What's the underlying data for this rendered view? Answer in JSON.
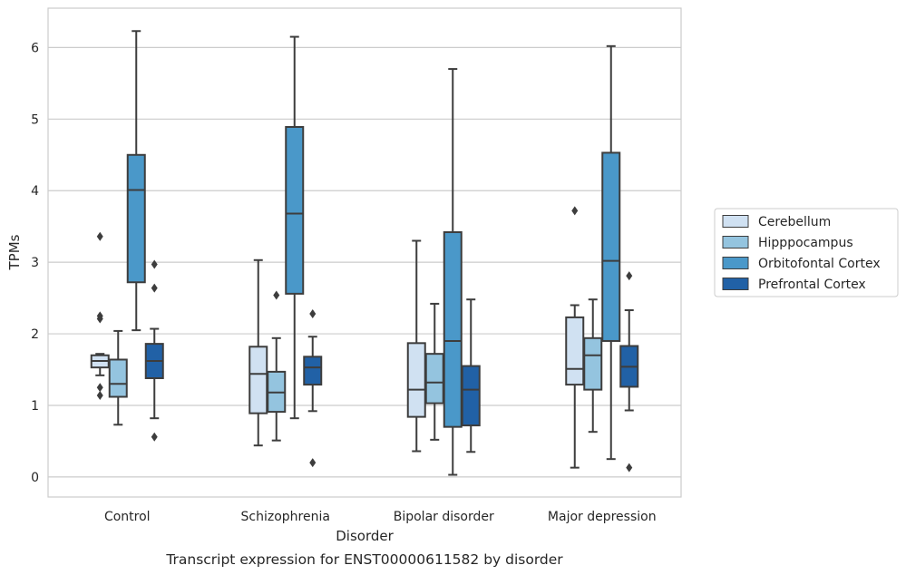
{
  "chart_data": {
    "type": "box",
    "caption": "Transcript expression for ENST00000611582 by disorder",
    "xlabel": "Disorder",
    "ylabel": "TPMs",
    "ylim": [
      -0.28,
      6.55
    ],
    "yticks": [
      0,
      1,
      2,
      3,
      4,
      5,
      6
    ],
    "ytick_labels": [
      "0",
      "1",
      "2",
      "3",
      "4",
      "5",
      "6"
    ],
    "grid": true,
    "legend_position": "right",
    "categories": [
      "Control",
      "Schizophrenia",
      "Bipolar disorder",
      "Major depression"
    ],
    "series": [
      {
        "name": "Cerebellum",
        "color": "#d0e1f2",
        "boxes": [
          {
            "whislo": 1.42,
            "q1": 1.53,
            "med": 1.62,
            "q3": 1.7,
            "whishi": 1.72,
            "fliers": [
              3.36,
              2.25,
              2.21,
              1.25,
              1.14
            ]
          },
          {
            "whislo": 0.44,
            "q1": 0.89,
            "med": 1.44,
            "q3": 1.82,
            "whishi": 3.03,
            "fliers": []
          },
          {
            "whislo": 0.36,
            "q1": 0.84,
            "med": 1.22,
            "q3": 1.87,
            "whishi": 3.3,
            "fliers": []
          },
          {
            "whislo": 0.13,
            "q1": 1.29,
            "med": 1.51,
            "q3": 2.23,
            "whishi": 2.4,
            "fliers": [
              3.72
            ]
          }
        ]
      },
      {
        "name": "Hipppocampus",
        "color": "#94c4df",
        "boxes": [
          {
            "whislo": 0.73,
            "q1": 1.12,
            "med": 1.3,
            "q3": 1.64,
            "whishi": 2.04,
            "fliers": []
          },
          {
            "whislo": 0.51,
            "q1": 0.91,
            "med": 1.18,
            "q3": 1.47,
            "whishi": 1.94,
            "fliers": [
              2.54
            ]
          },
          {
            "whislo": 0.52,
            "q1": 1.03,
            "med": 1.32,
            "q3": 1.72,
            "whishi": 2.42,
            "fliers": []
          },
          {
            "whislo": 0.63,
            "q1": 1.22,
            "med": 1.7,
            "q3": 1.94,
            "whishi": 2.48,
            "fliers": []
          }
        ]
      },
      {
        "name": "Orbitofontal Cortex",
        "color": "#4a98c9",
        "boxes": [
          {
            "whislo": 2.05,
            "q1": 2.72,
            "med": 4.01,
            "q3": 4.5,
            "whishi": 6.23,
            "fliers": []
          },
          {
            "whislo": 0.82,
            "q1": 2.56,
            "med": 3.68,
            "q3": 4.89,
            "whishi": 6.15,
            "fliers": []
          },
          {
            "whislo": 0.03,
            "q1": 0.7,
            "med": 1.9,
            "q3": 3.42,
            "whishi": 5.7,
            "fliers": []
          },
          {
            "whislo": 0.25,
            "q1": 1.9,
            "med": 3.02,
            "q3": 4.53,
            "whishi": 6.02,
            "fliers": []
          }
        ]
      },
      {
        "name": "Prefrontal Cortex",
        "color": "#2161a6",
        "boxes": [
          {
            "whislo": 0.82,
            "q1": 1.38,
            "med": 1.62,
            "q3": 1.86,
            "whishi": 2.07,
            "fliers": [
              2.97,
              2.64,
              0.56
            ]
          },
          {
            "whislo": 0.92,
            "q1": 1.29,
            "med": 1.53,
            "q3": 1.68,
            "whishi": 1.96,
            "fliers": [
              2.28,
              0.2
            ]
          },
          {
            "whislo": 0.35,
            "q1": 0.72,
            "med": 1.22,
            "q3": 1.55,
            "whishi": 2.48,
            "fliers": []
          },
          {
            "whislo": 0.93,
            "q1": 1.26,
            "med": 1.54,
            "q3": 1.83,
            "whishi": 2.33,
            "fliers": [
              2.81,
              0.13
            ]
          }
        ]
      }
    ]
  }
}
